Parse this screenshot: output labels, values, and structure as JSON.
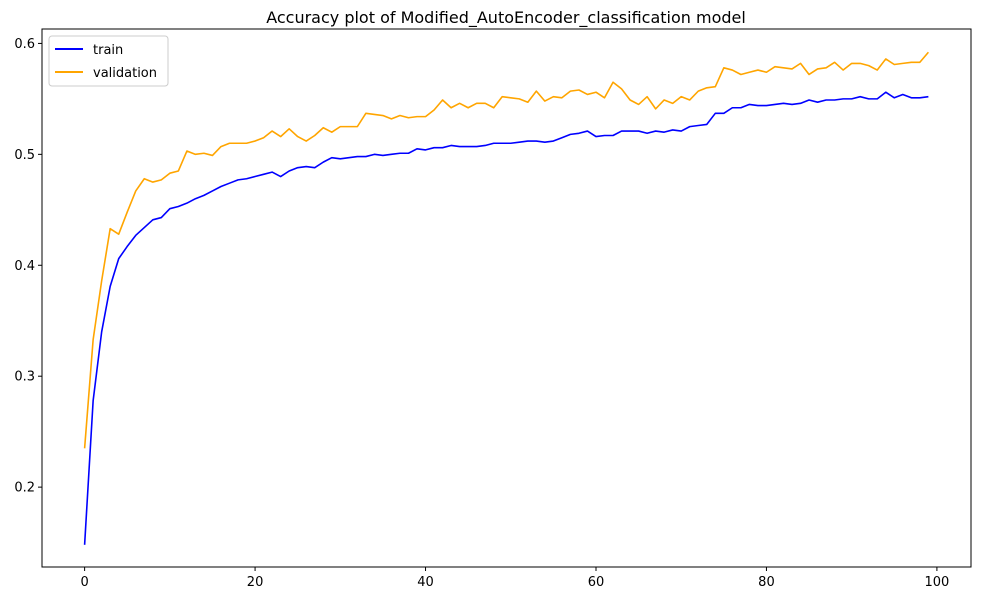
{
  "chart_data": {
    "type": "line",
    "title": "Accuracy plot of Modified_AutoEncoder_classification model",
    "xlabel": "",
    "ylabel": "",
    "xlim": [
      -5,
      104
    ],
    "ylim": [
      0.128,
      0.613
    ],
    "x_ticks": [
      0,
      20,
      40,
      60,
      80,
      100
    ],
    "y_ticks": [
      0.2,
      0.3,
      0.4,
      0.5,
      0.6
    ],
    "x_tick_labels": [
      "0",
      "20",
      "40",
      "60",
      "80",
      "100"
    ],
    "y_tick_labels": [
      "0.2",
      "0.3",
      "0.4",
      "0.5",
      "0.6"
    ],
    "grid": false,
    "legend_position": "top-left",
    "series": [
      {
        "name": "train",
        "color": "#0000ff",
        "values": [
          0.148,
          0.278,
          0.34,
          0.381,
          0.406,
          0.417,
          0.427,
          0.434,
          0.441,
          0.443,
          0.451,
          0.453,
          0.456,
          0.46,
          0.463,
          0.467,
          0.471,
          0.474,
          0.477,
          0.478,
          0.48,
          0.482,
          0.484,
          0.48,
          0.485,
          0.488,
          0.489,
          0.488,
          0.493,
          0.497,
          0.496,
          0.497,
          0.498,
          0.498,
          0.5,
          0.499,
          0.5,
          0.501,
          0.501,
          0.505,
          0.504,
          0.506,
          0.506,
          0.508,
          0.507,
          0.507,
          0.507,
          0.508,
          0.51,
          0.51,
          0.51,
          0.511,
          0.512,
          0.512,
          0.511,
          0.512,
          0.515,
          0.518,
          0.519,
          0.521,
          0.516,
          0.517,
          0.517,
          0.521,
          0.521,
          0.521,
          0.519,
          0.521,
          0.52,
          0.522,
          0.521,
          0.525,
          0.526,
          0.527,
          0.537,
          0.537,
          0.542,
          0.542,
          0.545,
          0.544,
          0.544,
          0.545,
          0.546,
          0.545,
          0.546,
          0.549,
          0.547,
          0.549,
          0.549,
          0.55,
          0.55,
          0.552,
          0.55,
          0.55,
          0.556,
          0.551,
          0.554,
          0.551,
          0.551,
          0.552
        ]
      },
      {
        "name": "validation",
        "color": "#ffa500",
        "values": [
          0.235,
          0.333,
          0.386,
          0.433,
          0.428,
          0.448,
          0.467,
          0.478,
          0.475,
          0.477,
          0.483,
          0.485,
          0.503,
          0.5,
          0.501,
          0.499,
          0.507,
          0.51,
          0.51,
          0.51,
          0.512,
          0.515,
          0.521,
          0.516,
          0.523,
          0.516,
          0.512,
          0.517,
          0.524,
          0.52,
          0.525,
          0.525,
          0.525,
          0.537,
          0.536,
          0.535,
          0.532,
          0.535,
          0.533,
          0.534,
          0.534,
          0.54,
          0.549,
          0.542,
          0.546,
          0.542,
          0.546,
          0.546,
          0.542,
          0.552,
          0.551,
          0.55,
          0.547,
          0.557,
          0.548,
          0.552,
          0.551,
          0.557,
          0.558,
          0.554,
          0.556,
          0.551,
          0.565,
          0.559,
          0.549,
          0.545,
          0.552,
          0.541,
          0.549,
          0.546,
          0.552,
          0.549,
          0.557,
          0.56,
          0.561,
          0.578,
          0.576,
          0.572,
          0.574,
          0.576,
          0.574,
          0.579,
          0.578,
          0.577,
          0.582,
          0.572,
          0.577,
          0.578,
          0.583,
          0.576,
          0.582,
          0.582,
          0.58,
          0.576,
          0.586,
          0.581,
          0.582,
          0.583,
          0.583,
          0.592
        ]
      }
    ]
  }
}
